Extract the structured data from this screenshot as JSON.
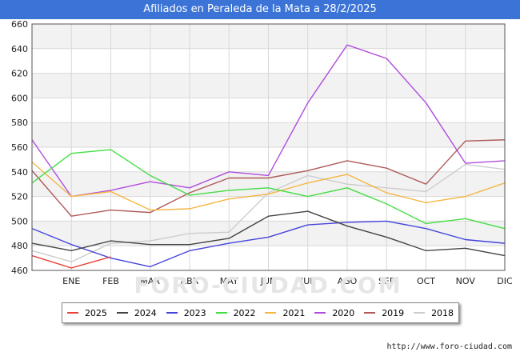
{
  "header": {
    "title": "Afiliados en Peraleda de la Mata a 28/2/2025"
  },
  "watermark": "FORO-CIUDAD.COM",
  "source_url": "http://www.foro-ciudad.com",
  "chart_data": {
    "type": "line",
    "title": "Afiliados en Peraleda de la Mata a 28/2/2025",
    "xlabel": "",
    "ylabel": "",
    "categories": [
      "",
      "ENE",
      "FEB",
      "MAR",
      "ABR",
      "MAY",
      "JUN",
      "JUL",
      "AGO",
      "SEP",
      "OCT",
      "NOV",
      "DIC"
    ],
    "ylim": [
      460,
      660
    ],
    "yticks": [
      460,
      480,
      500,
      520,
      540,
      560,
      580,
      600,
      620,
      640,
      660
    ],
    "grid": true,
    "legend_position": "bottom",
    "series": [
      {
        "name": "2025",
        "color": "#e8443a",
        "values": [
          472,
          462,
          471,
          null,
          null,
          null,
          null,
          null,
          null,
          null,
          null,
          null,
          null
        ]
      },
      {
        "name": "2024",
        "color": "#444444",
        "values": [
          482,
          476,
          484,
          481,
          481,
          486,
          504,
          508,
          496,
          487,
          476,
          478,
          472
        ]
      },
      {
        "name": "2023",
        "color": "#4444dd",
        "values": [
          494,
          481,
          470,
          463,
          476,
          482,
          487,
          497,
          499,
          500,
          494,
          485,
          482
        ]
      },
      {
        "name": "2022",
        "color": "#44dd44",
        "values": [
          531,
          555,
          558,
          537,
          521,
          525,
          527,
          520,
          527,
          514,
          498,
          502,
          494
        ]
      },
      {
        "name": "2021",
        "color": "#f5b642",
        "values": [
          548,
          520,
          524,
          509,
          510,
          518,
          522,
          531,
          538,
          523,
          515,
          520,
          531
        ]
      },
      {
        "name": "2020",
        "color": "#b04ddd",
        "values": [
          566,
          520,
          525,
          532,
          527,
          540,
          537,
          596,
          643,
          632,
          596,
          547,
          549
        ]
      },
      {
        "name": "2019",
        "color": "#b05a5a",
        "values": [
          541,
          504,
          509,
          507,
          523,
          535,
          535,
          541,
          549,
          543,
          530,
          565,
          566
        ]
      },
      {
        "name": "2018",
        "color": "#cccccc",
        "values": [
          476,
          467,
          482,
          484,
          490,
          491,
          523,
          537,
          530,
          527,
          524,
          546,
          542
        ]
      }
    ]
  }
}
